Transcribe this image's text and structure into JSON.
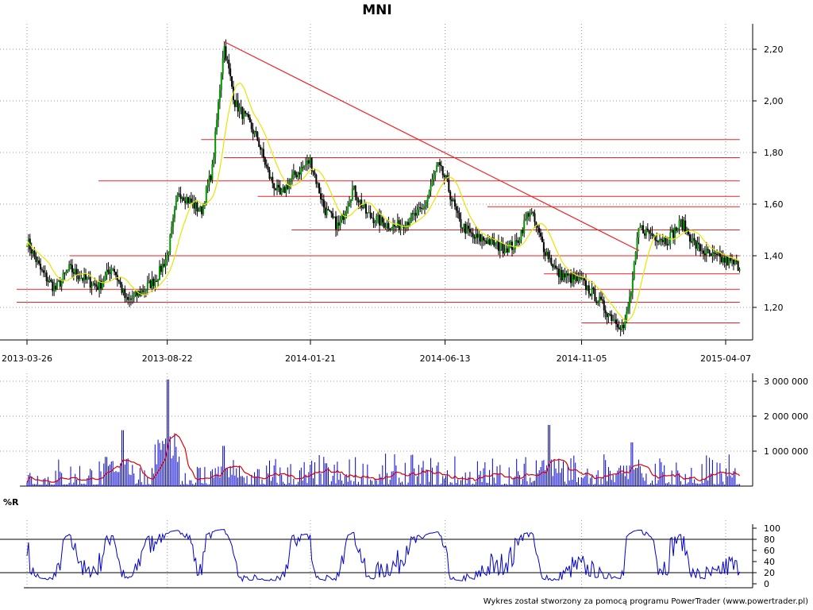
{
  "chart_title": "MNI",
  "footer_credit": "Wykres został stworzony za pomocą programu PowerTrader (www.powertrader.pl)",
  "colors": {
    "candles": "#000000",
    "moving_average": "#e6e600",
    "support_resistance": "#ee2222",
    "volume_bars": "#0000cc",
    "volume_average": "#dd0000",
    "oscillator": "#0000cc",
    "grid": "#999999"
  },
  "chart_data": [
    {
      "type": "candlestick",
      "panel": "price",
      "title": "MNI",
      "x_ticks": [
        "2013-03-26",
        "2013-08-22",
        "2014-01-21",
        "2014-06-13",
        "2014-11-05",
        "2015-04-07"
      ],
      "y_ticks": [
        "1,20",
        "1,40",
        "1,60",
        "1,80",
        "2,00",
        "2,20"
      ],
      "ylim": [
        1.1,
        2.3
      ],
      "grid": true,
      "price_path": [
        {
          "date": "2013-03-26",
          "close": 1.46
        },
        {
          "date": "2013-04-10",
          "close": 1.34
        },
        {
          "date": "2013-04-25",
          "close": 1.27
        },
        {
          "date": "2013-05-10",
          "close": 1.35
        },
        {
          "date": "2013-05-25",
          "close": 1.31
        },
        {
          "date": "2013-06-10",
          "close": 1.28
        },
        {
          "date": "2013-06-25",
          "close": 1.36
        },
        {
          "date": "2013-07-10",
          "close": 1.22
        },
        {
          "date": "2013-07-25",
          "close": 1.26
        },
        {
          "date": "2013-08-10",
          "close": 1.31
        },
        {
          "date": "2013-08-22",
          "close": 1.4
        },
        {
          "date": "2013-09-03",
          "close": 1.65
        },
        {
          "date": "2013-09-15",
          "close": 1.61
        },
        {
          "date": "2013-09-27",
          "close": 1.57
        },
        {
          "date": "2013-10-09",
          "close": 1.74
        },
        {
          "date": "2013-10-21",
          "close": 2.22
        },
        {
          "date": "2013-11-02",
          "close": 1.99
        },
        {
          "date": "2013-11-14",
          "close": 1.93
        },
        {
          "date": "2013-11-26",
          "close": 1.85
        },
        {
          "date": "2013-12-08",
          "close": 1.71
        },
        {
          "date": "2013-12-20",
          "close": 1.63
        },
        {
          "date": "2014-01-01",
          "close": 1.7
        },
        {
          "date": "2014-01-21",
          "close": 1.77
        },
        {
          "date": "2014-02-05",
          "close": 1.58
        },
        {
          "date": "2014-02-20",
          "close": 1.51
        },
        {
          "date": "2014-03-07",
          "close": 1.66
        },
        {
          "date": "2014-03-22",
          "close": 1.56
        },
        {
          "date": "2014-04-06",
          "close": 1.53
        },
        {
          "date": "2014-04-21",
          "close": 1.51
        },
        {
          "date": "2014-05-06",
          "close": 1.54
        },
        {
          "date": "2014-05-21",
          "close": 1.58
        },
        {
          "date": "2014-06-05",
          "close": 1.75
        },
        {
          "date": "2014-06-13",
          "close": 1.7
        },
        {
          "date": "2014-06-28",
          "close": 1.53
        },
        {
          "date": "2014-07-13",
          "close": 1.47
        },
        {
          "date": "2014-07-28",
          "close": 1.46
        },
        {
          "date": "2014-08-12",
          "close": 1.43
        },
        {
          "date": "2014-08-27",
          "close": 1.44
        },
        {
          "date": "2014-09-11",
          "close": 1.58
        },
        {
          "date": "2014-09-26",
          "close": 1.43
        },
        {
          "date": "2014-10-11",
          "close": 1.33
        },
        {
          "date": "2014-10-26",
          "close": 1.31
        },
        {
          "date": "2014-11-05",
          "close": 1.3
        },
        {
          "date": "2014-11-20",
          "close": 1.24
        },
        {
          "date": "2014-12-05",
          "close": 1.17
        },
        {
          "date": "2014-12-20",
          "close": 1.12
        },
        {
          "date": "2014-12-28",
          "close": 1.27
        },
        {
          "date": "2015-01-05",
          "close": 1.51
        },
        {
          "date": "2015-01-20",
          "close": 1.48
        },
        {
          "date": "2015-02-04",
          "close": 1.46
        },
        {
          "date": "2015-02-19",
          "close": 1.53
        },
        {
          "date": "2015-03-06",
          "close": 1.44
        },
        {
          "date": "2015-03-21",
          "close": 1.4
        },
        {
          "date": "2015-04-07",
          "close": 1.38
        },
        {
          "date": "2015-04-22",
          "close": 1.36
        }
      ],
      "trend_line": [
        {
          "date": "2013-10-21",
          "value": 2.23
        },
        {
          "date": "2015-01-05",
          "value": 1.42
        }
      ],
      "horizontal_levels": [
        {
          "value": 1.85,
          "from": "2013-09-27",
          "to": "2015-04-22"
        },
        {
          "value": 1.78,
          "from": "2013-10-21",
          "to": "2015-04-22"
        },
        {
          "value": 1.69,
          "from": "2013-06-10",
          "to": "2015-04-22"
        },
        {
          "value": 1.63,
          "from": "2013-11-26",
          "to": "2015-04-22"
        },
        {
          "value": 1.59,
          "from": "2014-07-28",
          "to": "2015-04-22"
        },
        {
          "value": 1.5,
          "from": "2014-01-01",
          "to": "2015-04-22"
        },
        {
          "value": 1.4,
          "from": "2013-05-10",
          "to": "2015-04-22"
        },
        {
          "value": 1.33,
          "from": "2014-09-26",
          "to": "2015-04-22"
        },
        {
          "value": 1.27,
          "from": "2013-03-15",
          "to": "2015-04-22"
        },
        {
          "value": 1.22,
          "from": "2013-03-15",
          "to": "2015-04-22"
        },
        {
          "value": 1.14,
          "from": "2014-11-05",
          "to": "2015-04-22"
        }
      ]
    },
    {
      "type": "bar",
      "panel": "volume",
      "y_ticks": [
        "1 000 000",
        "2 000 000",
        "3 000 000"
      ],
      "ylim": [
        0,
        3200000
      ],
      "grid": true,
      "spikes": [
        {
          "date": "2013-07-05",
          "value": 1600000
        },
        {
          "date": "2013-08-22",
          "value": 3050000
        },
        {
          "date": "2013-10-21",
          "value": 1150000
        },
        {
          "date": "2014-10-01",
          "value": 1750000
        },
        {
          "date": "2014-12-28",
          "value": 1250000
        }
      ]
    },
    {
      "type": "line",
      "panel": "oscillator",
      "label": "%R",
      "y_ticks": [
        "0",
        "20",
        "40",
        "60",
        "80",
        "100"
      ],
      "ylim": [
        0,
        100
      ],
      "levels": [
        20,
        80
      ],
      "grid": true
    }
  ]
}
